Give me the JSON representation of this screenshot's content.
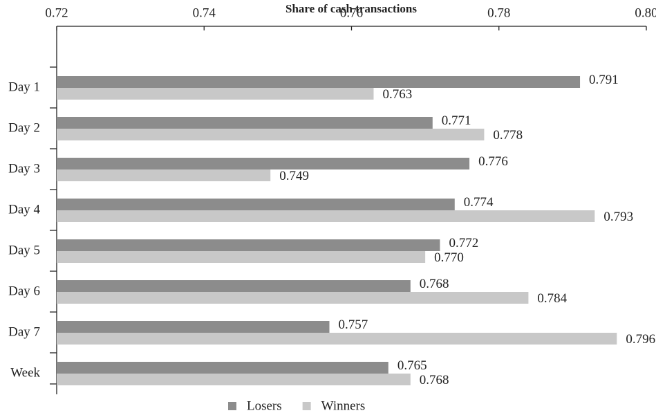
{
  "chart_data": {
    "type": "bar",
    "orientation": "horizontal",
    "title": "Share of cash transactions",
    "categories": [
      "Day 1",
      "Day 2",
      "Day 3",
      "Day 4",
      "Day 5",
      "Day 6",
      "Day 7",
      "Week"
    ],
    "series": [
      {
        "name": "Losers",
        "color": "#8c8c8c",
        "values": [
          0.791,
          0.771,
          0.776,
          0.774,
          0.772,
          0.768,
          0.757,
          0.765
        ],
        "value_labels": [
          "0.791",
          "0.771",
          "0.776",
          "0.774",
          "0.772",
          "0.768",
          "0.757",
          "0.765"
        ]
      },
      {
        "name": "Winners",
        "color": "#c8c8c8",
        "values": [
          0.763,
          0.778,
          0.749,
          0.793,
          0.77,
          0.784,
          0.796,
          0.768
        ],
        "value_labels": [
          "0.763",
          "0.778",
          "0.749",
          "0.793",
          "0.770",
          "0.784",
          "0.796",
          "0.768"
        ]
      }
    ],
    "xlim": [
      0.72,
      0.8
    ],
    "xticks": [
      0.72,
      0.74,
      0.76,
      0.78,
      {
        "value": 0.8,
        "label": "0.80"
      }
    ],
    "legend": "bottom"
  }
}
